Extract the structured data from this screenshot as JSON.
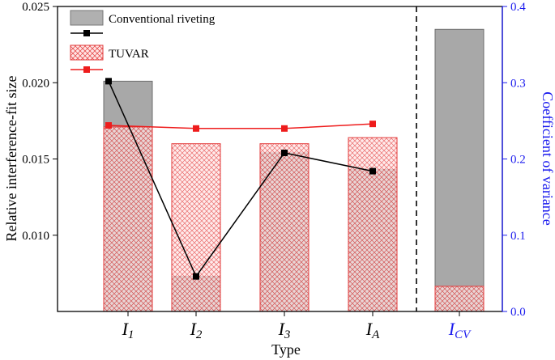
{
  "chart_data": {
    "type": "bar",
    "categories": [
      {
        "main": "I",
        "sub": "1"
      },
      {
        "main": "I",
        "sub": "2"
      },
      {
        "main": "I",
        "sub": "3"
      },
      {
        "main": "I",
        "sub": "A"
      }
    ],
    "cv_category": {
      "main": "I",
      "sub": "CV"
    },
    "xlabel": "Type",
    "ylabel": "Relative interference-fit size",
    "y2label": "Coefficient of variance",
    "ylim": [
      0.005,
      0.025
    ],
    "y2lim": [
      0.0,
      0.4
    ],
    "yticks": [
      "0.010",
      "0.015",
      "0.020",
      "0.025"
    ],
    "y2ticks": [
      "0.0",
      "0.1",
      "0.2",
      "0.3",
      "0.4"
    ],
    "series": [
      {
        "name": "Conventional riveting",
        "values": [
          0.0201,
          0.0073,
          0.0154,
          0.0143
        ],
        "cv": 0.37,
        "line_values": [
          0.0201,
          0.0073,
          0.0154,
          0.0142
        ]
      },
      {
        "name": "TUVAR",
        "values": [
          0.0171,
          0.016,
          0.016,
          0.0164
        ],
        "cv": 0.033,
        "line_values": [
          0.0172,
          0.017,
          0.017,
          0.0173
        ]
      }
    ],
    "colors": {
      "conventional_fill": "#a8a8a8",
      "conventional_stroke": "#6e6e6e",
      "tuvar_fill": "#ffdede",
      "tuvar_hatch": "#e33a3a",
      "tuvar_line": "#ee1c1c",
      "conv_line": "#000000",
      "right_axis": "#1a1aee"
    }
  }
}
